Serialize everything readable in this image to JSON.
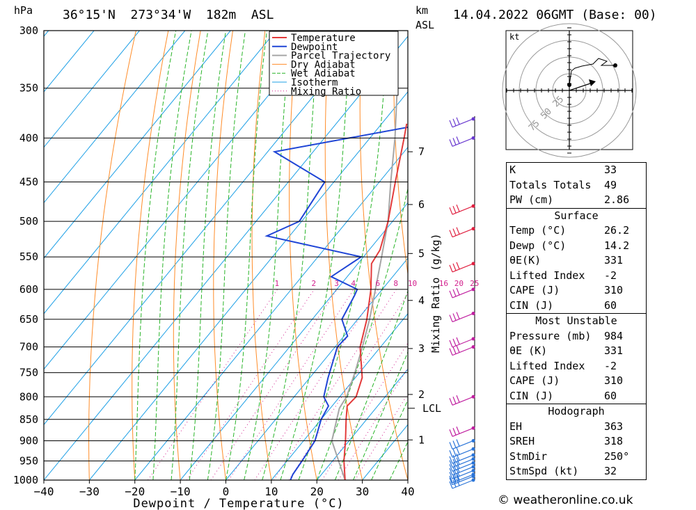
{
  "header": {
    "location": "36°15'N  273°34'W  182m  ASL",
    "datetime": "14.04.2022 06GMT (Base: 00)",
    "unit_left": "hPa",
    "unit_right_1": "km",
    "unit_right_2": "ASL"
  },
  "chart_data": {
    "type": "line",
    "subtype": "skew-T log-P diagram",
    "xlabel": "Dewpoint / Temperature (°C)",
    "ylabel": "hPa",
    "x_ticks": [
      -40,
      -30,
      -20,
      -10,
      0,
      10,
      20,
      30,
      40
    ],
    "pressure_ticks": [
      300,
      350,
      400,
      450,
      500,
      550,
      600,
      650,
      700,
      750,
      800,
      850,
      900,
      950,
      1000
    ],
    "xlim": [
      -40,
      40
    ],
    "ylim_hpa": [
      1000,
      300
    ],
    "km_ticks": [
      {
        "km": "1",
        "p": 898
      },
      {
        "km": "2",
        "p": 795
      },
      {
        "km": "3",
        "p": 703
      },
      {
        "km": "4",
        "p": 618
      },
      {
        "km": "5",
        "p": 545
      },
      {
        "km": "6",
        "p": 478
      },
      {
        "km": "7",
        "p": 415
      }
    ],
    "lcl": {
      "label": "LCL",
      "p": 825
    },
    "mixing_ratio_label": "Mixing Ratio (g/kg)",
    "mixing_ratio_values": [
      "1",
      "2",
      "3",
      "4",
      "6",
      "8",
      "10",
      "16",
      "20",
      "25"
    ],
    "legend": [
      "Temperature",
      "Dewpoint",
      "Parcel Trajectory",
      "Dry Adiabat",
      "Wet Adiabat",
      "Isotherm",
      "Mixing Ratio"
    ],
    "colors": {
      "temperature": "#e33b3b",
      "dewpoint": "#1f45d6",
      "parcel": "#a6a6a6",
      "dry": "#ff8c28",
      "wet": "#28b428",
      "isotherm": "#1ea0e6",
      "mixing": "#d21e8c"
    },
    "series": [
      {
        "name": "Temperature",
        "points": [
          [
            1000,
            26.2
          ],
          [
            950,
            22.5
          ],
          [
            900,
            19.2
          ],
          [
            850,
            15.5
          ],
          [
            820,
            13.3
          ],
          [
            800,
            13.6
          ],
          [
            760,
            11.5
          ],
          [
            700,
            5.5
          ],
          [
            650,
            2.0
          ],
          [
            600,
            -2.5
          ],
          [
            560,
            -7.0
          ],
          [
            540,
            -7.6
          ],
          [
            500,
            -11.0
          ],
          [
            450,
            -16.5
          ],
          [
            400,
            -22.5
          ],
          [
            385,
            -24.5
          ]
        ]
      },
      {
        "name": "Dewpoint",
        "points": [
          [
            1000,
            14.2
          ],
          [
            985,
            13.7
          ],
          [
            950,
            13.3
          ],
          [
            900,
            12.5
          ],
          [
            850,
            10.0
          ],
          [
            820,
            9.2
          ],
          [
            800,
            6.5
          ],
          [
            760,
            4.0
          ],
          [
            700,
            0.5
          ],
          [
            680,
            0.8
          ],
          [
            650,
            -3.5
          ],
          [
            610,
            -5.0
          ],
          [
            600,
            -5.5
          ],
          [
            580,
            -13.5
          ],
          [
            550,
            -10.5
          ],
          [
            520,
            -35.0
          ],
          [
            500,
            -30.5
          ],
          [
            450,
            -32.0
          ],
          [
            415,
            -48.5
          ],
          [
            387,
            -22.0
          ]
        ]
      },
      {
        "name": "Parcel Trajectory",
        "points": [
          [
            1000,
            26.2
          ],
          [
            900,
            16.2
          ],
          [
            825,
            12.0
          ],
          [
            800,
            11.5
          ],
          [
            750,
            9.0
          ],
          [
            700,
            6.0
          ],
          [
            650,
            2.6
          ],
          [
            600,
            -1.5
          ],
          [
            550,
            -6.0
          ],
          [
            500,
            -11.0
          ],
          [
            450,
            -17.5
          ],
          [
            400,
            -24.5
          ],
          [
            350,
            -33.0
          ],
          [
            305,
            -43.0
          ]
        ]
      }
    ],
    "wind_barbs_hpa": [
      1000,
      990,
      985,
      975,
      965,
      955,
      945,
      935,
      920,
      900,
      870,
      800,
      700,
      685,
      640,
      600,
      560,
      510,
      480,
      400,
      380
    ]
  },
  "hodograph": {
    "unit": "kt",
    "ring_labels": [
      "25",
      "50",
      "75"
    ]
  },
  "indices": {
    "top": [
      {
        "label": "K",
        "value": "33"
      },
      {
        "label": "Totals Totals",
        "value": "49"
      },
      {
        "label": "PW (cm)",
        "value": "2.86"
      }
    ],
    "surface_title": "Surface",
    "surface": [
      {
        "label": "Temp (°C)",
        "value": "26.2"
      },
      {
        "label": "Dewp (°C)",
        "value": "14.2"
      },
      {
        "label": "θE(K)",
        "value": "331"
      },
      {
        "label": "Lifted Index",
        "value": "-2"
      },
      {
        "label": "CAPE (J)",
        "value": "310"
      },
      {
        "label": "CIN (J)",
        "value": "60"
      }
    ],
    "mu_title": "Most Unstable",
    "mu": [
      {
        "label": "Pressure (mb)",
        "value": "984"
      },
      {
        "label": "θE (K)",
        "value": "331"
      },
      {
        "label": "Lifted Index",
        "value": "-2"
      },
      {
        "label": "CAPE (J)",
        "value": "310"
      },
      {
        "label": "CIN (J)",
        "value": "60"
      }
    ],
    "hodo_title": "Hodograph",
    "hodo": [
      {
        "label": "EH",
        "value": "363"
      },
      {
        "label": "SREH",
        "value": "318"
      },
      {
        "label": "StmDir",
        "value": "250°"
      },
      {
        "label": "StmSpd (kt)",
        "value": "32"
      }
    ]
  },
  "footer": {
    "credit": "© weatheronline.co.uk"
  }
}
